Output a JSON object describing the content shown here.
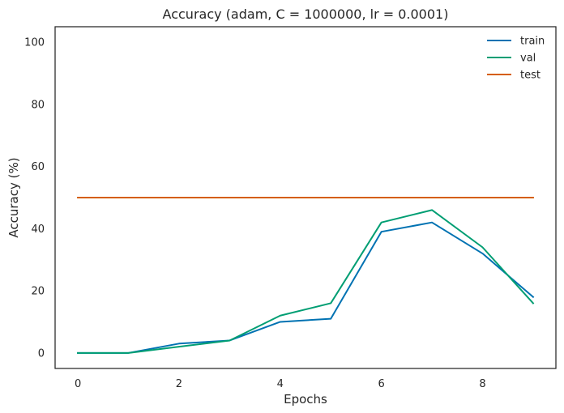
{
  "chart_data": {
    "type": "line",
    "title": "Accuracy (adam, C = 1000000, lr = 0.0001)",
    "xlabel": "Epochs",
    "ylabel": "Accuracy (%)",
    "x": [
      0,
      1,
      2,
      3,
      4,
      5,
      6,
      7,
      8,
      9
    ],
    "xlim": [
      -0.45,
      9.45
    ],
    "ylim": [
      -5,
      105
    ],
    "xticks": [
      0,
      2,
      4,
      6,
      8
    ],
    "yticks": [
      0,
      20,
      40,
      60,
      80,
      100
    ],
    "grid": false,
    "legend_position": "top-right",
    "series": [
      {
        "name": "train",
        "color": "#0072b2",
        "values": [
          0,
          0,
          3,
          4,
          10,
          11,
          39,
          42,
          32,
          18
        ]
      },
      {
        "name": "val",
        "color": "#009e73",
        "values": [
          0,
          0,
          2,
          4,
          12,
          16,
          42,
          46,
          34,
          16
        ]
      },
      {
        "name": "test",
        "color": "#d55e00",
        "values": [
          50,
          50,
          50,
          50,
          50,
          50,
          50,
          50,
          50,
          50
        ]
      }
    ]
  }
}
